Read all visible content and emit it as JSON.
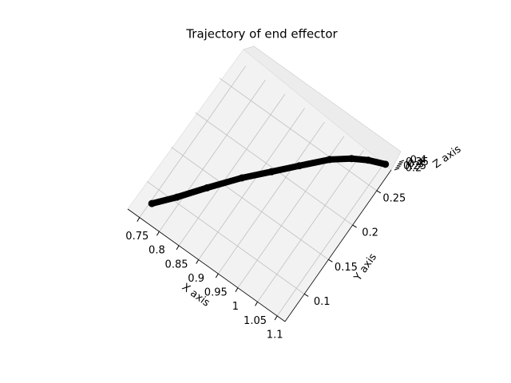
{
  "chart_data": {
    "type": "scatter3d",
    "title": "Trajectory of end effector",
    "x_label": "X axis",
    "y_label": "Y axis",
    "z_label": "Z axis",
    "x": [
      0.755,
      0.79,
      0.83,
      0.877,
      0.92,
      0.96,
      1.004,
      1.04,
      1.07,
      1.104
    ],
    "y": [
      0.0765,
      0.1,
      0.13,
      0.1635,
      0.19,
      0.215,
      0.242,
      0.258,
      0.268,
      0.276
    ],
    "z": [
      0.3,
      0.3,
      0.3,
      0.3,
      0.3,
      0.3,
      0.3,
      0.3,
      0.3,
      0.3
    ],
    "color": "#000000",
    "xlim": [
      0.72,
      1.12
    ],
    "ylim": [
      0.06,
      0.28
    ],
    "zlim": [
      0.2,
      0.4
    ],
    "xticks": [
      0.75,
      0.8,
      0.85,
      0.9,
      0.95,
      1.0,
      1.05,
      1.1
    ],
    "yticks": [
      0.1,
      0.15,
      0.2,
      0.25
    ],
    "zticks": [
      0.2,
      0.25,
      0.3,
      0.35,
      0.4
    ],
    "grid": true
  }
}
